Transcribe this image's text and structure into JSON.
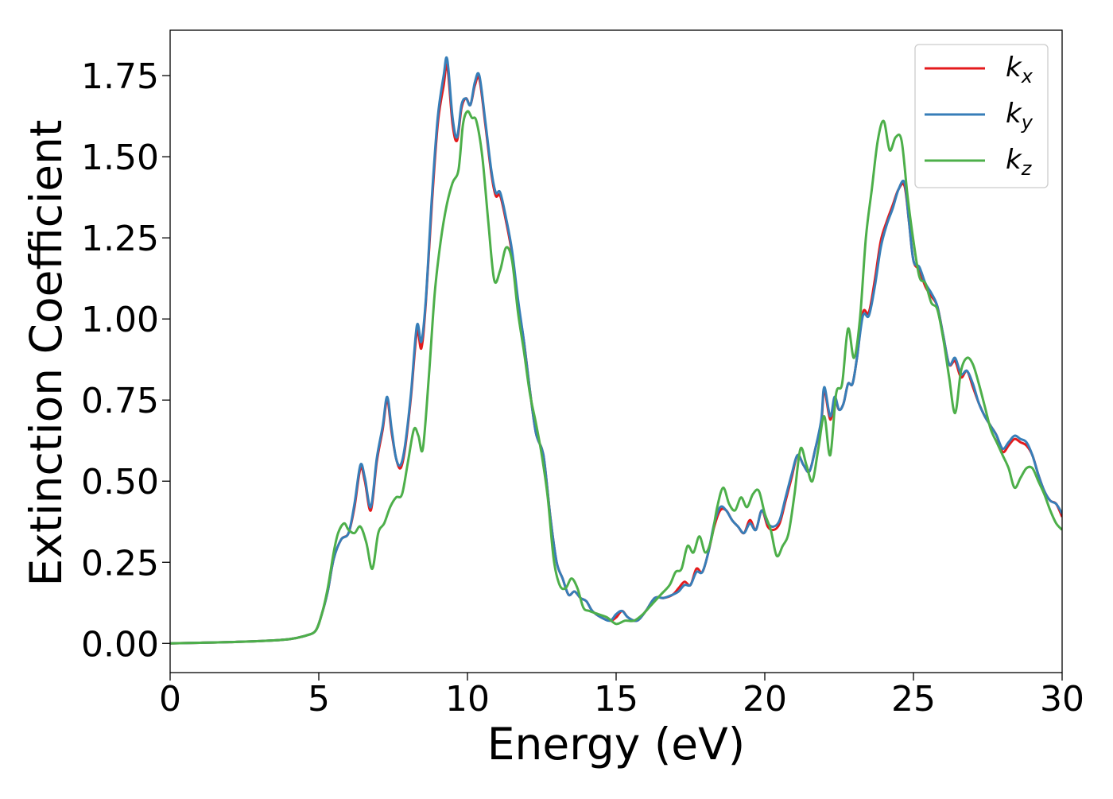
{
  "chart_data": {
    "type": "line",
    "xlabel": "Energy (eV)",
    "ylabel": "Extinction Coefficient",
    "xlim": [
      0,
      30
    ],
    "ylim": [
      -0.09,
      1.89
    ],
    "xticks": [
      0,
      5,
      10,
      15,
      20,
      25,
      30
    ],
    "xtick_labels": [
      "0",
      "5",
      "10",
      "15",
      "20",
      "25",
      "30"
    ],
    "yticks": [
      0.0,
      0.25,
      0.5,
      0.75,
      1.0,
      1.25,
      1.5,
      1.75
    ],
    "ytick_labels": [
      "0.00",
      "0.25",
      "0.50",
      "0.75",
      "1.00",
      "1.25",
      "1.50",
      "1.75"
    ],
    "grid": false,
    "legend_position": "top-right",
    "series": [
      {
        "name": "kx",
        "name_base": "k",
        "name_sub": "x",
        "color": "#e41a1c",
        "x": [
          0,
          1,
          2,
          3,
          4,
          4.6,
          4.9,
          5.1,
          5.3,
          5.5,
          5.75,
          6.0,
          6.2,
          6.4,
          6.55,
          6.75,
          6.95,
          7.15,
          7.3,
          7.45,
          7.6,
          7.75,
          7.9,
          8.1,
          8.3,
          8.45,
          8.6,
          8.8,
          9.0,
          9.2,
          9.32,
          9.5,
          9.65,
          9.8,
          9.95,
          10.1,
          10.25,
          10.4,
          10.6,
          10.8,
          10.95,
          11.1,
          11.3,
          11.5,
          11.7,
          11.9,
          12.1,
          12.3,
          12.5,
          12.6,
          12.8,
          13.0,
          13.2,
          13.4,
          13.6,
          13.8,
          14.0,
          14.2,
          14.5,
          14.8,
          15.0,
          15.2,
          15.4,
          15.7,
          16.0,
          16.3,
          16.6,
          16.9,
          17.1,
          17.3,
          17.5,
          17.7,
          17.9,
          18.1,
          18.3,
          18.5,
          18.7,
          18.9,
          19.1,
          19.3,
          19.5,
          19.7,
          19.9,
          20.1,
          20.3,
          20.5,
          20.7,
          20.9,
          21.1,
          21.3,
          21.5,
          21.7,
          21.9,
          22.0,
          22.2,
          22.35,
          22.5,
          22.65,
          22.8,
          22.95,
          23.1,
          23.3,
          23.5,
          23.7,
          23.9,
          24.1,
          24.3,
          24.5,
          24.7,
          24.85,
          25.0,
          25.2,
          25.4,
          25.6,
          25.8,
          26.0,
          26.2,
          26.4,
          26.6,
          26.8,
          27.0,
          27.2,
          27.4,
          27.6,
          27.8,
          28.0,
          28.2,
          28.4,
          28.6,
          28.8,
          29.0,
          29.2,
          29.4,
          29.6,
          29.8,
          30.0
        ],
        "y": [
          0.0,
          0.002,
          0.004,
          0.007,
          0.013,
          0.025,
          0.04,
          0.09,
          0.16,
          0.26,
          0.32,
          0.34,
          0.42,
          0.54,
          0.5,
          0.41,
          0.56,
          0.66,
          0.75,
          0.65,
          0.57,
          0.54,
          0.6,
          0.76,
          0.96,
          0.91,
          1.05,
          1.35,
          1.6,
          1.72,
          1.78,
          1.6,
          1.55,
          1.65,
          1.68,
          1.66,
          1.72,
          1.74,
          1.6,
          1.45,
          1.38,
          1.38,
          1.3,
          1.2,
          1.05,
          0.93,
          0.78,
          0.65,
          0.6,
          0.55,
          0.38,
          0.25,
          0.2,
          0.15,
          0.16,
          0.14,
          0.13,
          0.1,
          0.08,
          0.07,
          0.08,
          0.1,
          0.08,
          0.07,
          0.1,
          0.14,
          0.14,
          0.15,
          0.17,
          0.19,
          0.18,
          0.23,
          0.22,
          0.28,
          0.36,
          0.41,
          0.41,
          0.38,
          0.36,
          0.34,
          0.38,
          0.35,
          0.41,
          0.36,
          0.35,
          0.37,
          0.44,
          0.51,
          0.58,
          0.55,
          0.53,
          0.6,
          0.68,
          0.78,
          0.69,
          0.75,
          0.72,
          0.74,
          0.8,
          0.8,
          0.88,
          1.02,
          1.02,
          1.12,
          1.24,
          1.3,
          1.35,
          1.4,
          1.41,
          1.3,
          1.18,
          1.15,
          1.1,
          1.07,
          1.04,
          0.95,
          0.86,
          0.87,
          0.82,
          0.84,
          0.79,
          0.74,
          0.7,
          0.67,
          0.64,
          0.59,
          0.61,
          0.63,
          0.62,
          0.61,
          0.58,
          0.52,
          0.47,
          0.44,
          0.43,
          0.39
        ]
      },
      {
        "name": "ky",
        "name_base": "k",
        "name_sub": "y",
        "color": "#377eb8",
        "x": [
          0,
          1,
          2,
          3,
          4,
          4.6,
          4.9,
          5.1,
          5.3,
          5.5,
          5.75,
          6.0,
          6.2,
          6.4,
          6.55,
          6.75,
          6.95,
          7.15,
          7.3,
          7.45,
          7.6,
          7.75,
          7.9,
          8.1,
          8.3,
          8.45,
          8.6,
          8.8,
          9.0,
          9.2,
          9.32,
          9.5,
          9.65,
          9.8,
          9.95,
          10.1,
          10.25,
          10.4,
          10.6,
          10.8,
          10.95,
          11.1,
          11.3,
          11.5,
          11.7,
          11.9,
          12.1,
          12.3,
          12.5,
          12.6,
          12.8,
          13.0,
          13.2,
          13.4,
          13.6,
          13.8,
          14.0,
          14.2,
          14.5,
          14.8,
          15.0,
          15.2,
          15.4,
          15.7,
          16.0,
          16.3,
          16.6,
          16.9,
          17.1,
          17.3,
          17.5,
          17.7,
          17.9,
          18.1,
          18.3,
          18.5,
          18.7,
          18.9,
          19.1,
          19.3,
          19.5,
          19.7,
          19.9,
          20.1,
          20.3,
          20.5,
          20.7,
          20.9,
          21.1,
          21.3,
          21.5,
          21.7,
          21.9,
          22.0,
          22.2,
          22.35,
          22.5,
          22.65,
          22.8,
          22.95,
          23.1,
          23.3,
          23.5,
          23.7,
          23.9,
          24.1,
          24.3,
          24.5,
          24.7,
          24.85,
          25.0,
          25.2,
          25.4,
          25.6,
          25.8,
          26.0,
          26.2,
          26.4,
          26.6,
          26.8,
          27.0,
          27.2,
          27.4,
          27.6,
          27.8,
          28.0,
          28.2,
          28.4,
          28.6,
          28.8,
          29.0,
          29.2,
          29.4,
          29.6,
          29.8,
          30.0
        ],
        "y": [
          0.0,
          0.002,
          0.004,
          0.007,
          0.013,
          0.025,
          0.04,
          0.09,
          0.16,
          0.26,
          0.32,
          0.34,
          0.43,
          0.55,
          0.51,
          0.42,
          0.57,
          0.67,
          0.76,
          0.66,
          0.57,
          0.55,
          0.61,
          0.77,
          0.98,
          0.93,
          1.06,
          1.37,
          1.62,
          1.75,
          1.8,
          1.62,
          1.56,
          1.66,
          1.68,
          1.66,
          1.73,
          1.75,
          1.61,
          1.46,
          1.39,
          1.39,
          1.31,
          1.21,
          1.06,
          0.93,
          0.78,
          0.65,
          0.6,
          0.55,
          0.38,
          0.25,
          0.2,
          0.15,
          0.16,
          0.14,
          0.13,
          0.1,
          0.08,
          0.07,
          0.09,
          0.1,
          0.08,
          0.07,
          0.1,
          0.14,
          0.14,
          0.15,
          0.16,
          0.18,
          0.18,
          0.22,
          0.22,
          0.28,
          0.37,
          0.42,
          0.41,
          0.38,
          0.36,
          0.34,
          0.37,
          0.35,
          0.41,
          0.37,
          0.36,
          0.38,
          0.45,
          0.52,
          0.58,
          0.55,
          0.53,
          0.6,
          0.69,
          0.79,
          0.7,
          0.76,
          0.72,
          0.74,
          0.8,
          0.8,
          0.88,
          1.01,
          1.01,
          1.1,
          1.22,
          1.29,
          1.34,
          1.4,
          1.42,
          1.3,
          1.18,
          1.16,
          1.11,
          1.08,
          1.04,
          0.95,
          0.86,
          0.88,
          0.83,
          0.84,
          0.8,
          0.74,
          0.7,
          0.67,
          0.64,
          0.6,
          0.62,
          0.64,
          0.63,
          0.62,
          0.58,
          0.52,
          0.47,
          0.44,
          0.43,
          0.4
        ]
      },
      {
        "name": "kz",
        "name_base": "k",
        "name_sub": "z",
        "color": "#4daf4a",
        "x": [
          0,
          1,
          2,
          3,
          4,
          4.6,
          4.9,
          5.1,
          5.3,
          5.5,
          5.65,
          5.85,
          6.0,
          6.2,
          6.4,
          6.6,
          6.8,
          7.0,
          7.2,
          7.4,
          7.6,
          7.8,
          8.0,
          8.2,
          8.35,
          8.5,
          8.7,
          8.9,
          9.1,
          9.3,
          9.5,
          9.7,
          9.85,
          10.0,
          10.15,
          10.3,
          10.5,
          10.7,
          10.9,
          11.1,
          11.3,
          11.5,
          11.7,
          11.9,
          12.1,
          12.3,
          12.5,
          12.7,
          12.9,
          13.1,
          13.3,
          13.5,
          13.7,
          13.9,
          14.1,
          14.4,
          14.7,
          15.0,
          15.3,
          15.6,
          15.9,
          16.2,
          16.5,
          16.8,
          17.0,
          17.2,
          17.4,
          17.6,
          17.8,
          18.0,
          18.2,
          18.4,
          18.6,
          18.8,
          19.0,
          19.2,
          19.4,
          19.6,
          19.8,
          20.0,
          20.2,
          20.4,
          20.6,
          20.8,
          21.0,
          21.2,
          21.4,
          21.6,
          21.8,
          22.0,
          22.2,
          22.4,
          22.6,
          22.8,
          23.0,
          23.2,
          23.4,
          23.6,
          23.8,
          24.0,
          24.2,
          24.4,
          24.6,
          24.8,
          25.0,
          25.2,
          25.4,
          25.6,
          25.8,
          26.0,
          26.2,
          26.4,
          26.6,
          26.8,
          27.0,
          27.2,
          27.4,
          27.6,
          27.8,
          28.0,
          28.2,
          28.4,
          28.6,
          28.8,
          29.0,
          29.2,
          29.4,
          29.6,
          29.8,
          30.0
        ],
        "y": [
          0.0,
          0.002,
          0.004,
          0.007,
          0.013,
          0.025,
          0.04,
          0.09,
          0.17,
          0.28,
          0.34,
          0.37,
          0.35,
          0.34,
          0.36,
          0.31,
          0.23,
          0.34,
          0.37,
          0.42,
          0.45,
          0.46,
          0.56,
          0.66,
          0.64,
          0.6,
          0.82,
          1.08,
          1.24,
          1.35,
          1.42,
          1.46,
          1.6,
          1.64,
          1.62,
          1.61,
          1.5,
          1.3,
          1.12,
          1.15,
          1.22,
          1.18,
          1.02,
          0.9,
          0.77,
          0.68,
          0.58,
          0.45,
          0.26,
          0.18,
          0.17,
          0.2,
          0.17,
          0.11,
          0.1,
          0.09,
          0.08,
          0.06,
          0.07,
          0.07,
          0.09,
          0.12,
          0.15,
          0.18,
          0.22,
          0.23,
          0.3,
          0.28,
          0.33,
          0.28,
          0.32,
          0.42,
          0.48,
          0.43,
          0.41,
          0.45,
          0.42,
          0.46,
          0.47,
          0.4,
          0.35,
          0.27,
          0.3,
          0.34,
          0.46,
          0.6,
          0.55,
          0.5,
          0.6,
          0.7,
          0.58,
          0.77,
          0.8,
          0.97,
          0.88,
          1.0,
          1.25,
          1.4,
          1.55,
          1.61,
          1.52,
          1.56,
          1.55,
          1.38,
          1.24,
          1.13,
          1.11,
          1.05,
          1.03,
          0.94,
          0.82,
          0.71,
          0.84,
          0.88,
          0.86,
          0.8,
          0.73,
          0.66,
          0.62,
          0.58,
          0.54,
          0.48,
          0.51,
          0.54,
          0.54,
          0.5,
          0.46,
          0.41,
          0.37,
          0.35
        ]
      }
    ]
  }
}
